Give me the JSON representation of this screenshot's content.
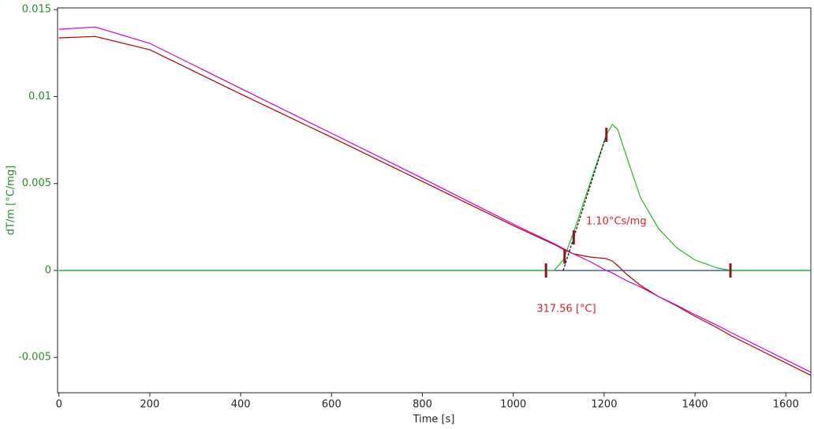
{
  "chart_data": {
    "type": "line",
    "xlabel": "Time [s]",
    "ylabel": "dT/m  [°C/mg]",
    "xlim": [
      -3,
      1655
    ],
    "ylim": [
      -0.00703,
      0.0151
    ],
    "xticks": [
      0,
      200,
      400,
      600,
      800,
      1000,
      1200,
      1400,
      1600
    ],
    "yticks": [
      0.015,
      0.01,
      0.005,
      0,
      -0.005
    ],
    "x": [
      0,
      80,
      200,
      400,
      600,
      800,
      1000,
      1090,
      1110,
      1133,
      1170,
      1205,
      1218,
      1230,
      1250,
      1280,
      1320,
      1360,
      1400,
      1450,
      1480,
      1550,
      1655
    ],
    "series": [
      {
        "color": "#cc00cc",
        "values": [
          0.01387,
          0.014,
          0.01306,
          0.01047,
          0.00789,
          0.0053,
          0.00267,
          0.00154,
          0.00127,
          0.00095,
          0.0005,
          0.0,
          -0.00014,
          -0.00032,
          -0.00059,
          -0.00095,
          -0.0015,
          -0.002,
          -0.00254,
          -0.00317,
          -0.00358,
          -0.00449,
          -0.00585
        ]
      },
      {
        "color": "#b00000",
        "values": [
          0.01337,
          0.01346,
          0.01269,
          0.01015,
          0.00766,
          0.00512,
          0.00258,
          0.0015,
          0.00122,
          0.00095,
          0.00077,
          0.00068,
          0.00054,
          0.00027,
          -0.00023,
          -0.00086,
          -0.0015,
          -0.00204,
          -0.00263,
          -0.00331,
          -0.00376,
          -0.00467,
          -0.00603
        ]
      },
      {
        "color": "#22bb22",
        "values": [
          0,
          0,
          0,
          0,
          0,
          0,
          0,
          0,
          0.0006,
          0.0022,
          0.0051,
          0.0078,
          0.0084,
          0.0081,
          0.0065,
          0.0042,
          0.0024,
          0.0013,
          0.0006,
          0.00014,
          0,
          0,
          0
        ]
      },
      {
        "color": "#1f3f8f",
        "values": [
          0,
          0,
          0,
          0,
          0,
          0,
          0,
          0,
          0,
          0,
          0,
          0,
          0,
          0,
          0,
          0,
          0,
          0,
          0,
          0,
          0,
          0,
          0
        ]
      }
    ],
    "markers": {
      "color": "#8b1a1a",
      "x": [
        1072,
        1113,
        1133,
        1205,
        1478
      ],
      "values": [
        0,
        0.0008,
        0.0019,
        0.0078,
        0
      ]
    },
    "tangent": {
      "color": "#000000",
      "x": [
        1110,
        1205
      ],
      "values": [
        0,
        0.0078
      ]
    },
    "annotations": [
      {
        "text": "1.10°Cs/mg",
        "color": "#e02020"
      },
      {
        "text": "317.56 [°C]",
        "color": "#e02020"
      }
    ],
    "axis_color": "#2a8a2a"
  }
}
